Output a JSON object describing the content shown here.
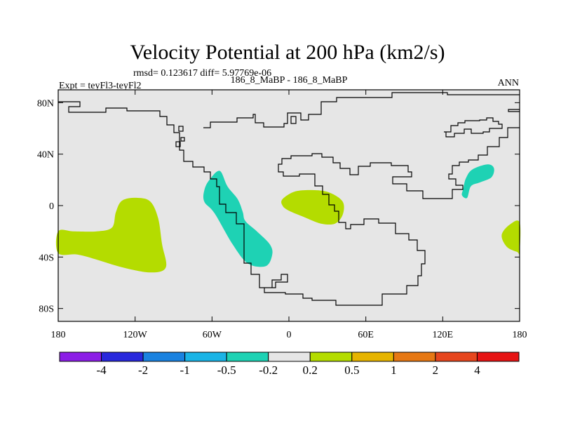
{
  "chart_data": {
    "type": "heatmap",
    "title": "Velocity Potential at 200 hPa (km2/s)",
    "stats": "rmsd= 0.123617 diff= 5.97769e-06",
    "left_label": "Expt = teyFl3-teyFl2",
    "center_label": "186_8_MaBP - 186_8_MaBP",
    "right_label": "ANN",
    "xlim": [
      -180,
      180
    ],
    "ylim": [
      -90,
      90
    ],
    "x_ticks": [
      {
        "value": -180,
        "label": "180"
      },
      {
        "value": -120,
        "label": "120W"
      },
      {
        "value": -60,
        "label": "60W"
      },
      {
        "value": 0,
        "label": "0"
      },
      {
        "value": 60,
        "label": "60E"
      },
      {
        "value": 120,
        "label": "120E"
      },
      {
        "value": 180,
        "label": "180"
      }
    ],
    "y_ticks": [
      {
        "value": 80,
        "label": "80N"
      },
      {
        "value": 40,
        "label": "40N"
      },
      {
        "value": 0,
        "label": "0"
      },
      {
        "value": -40,
        "label": "40S"
      },
      {
        "value": -80,
        "label": "80S"
      }
    ],
    "colorbar": {
      "colors": [
        "#8c1ee6",
        "#2828dc",
        "#1a82e0",
        "#1ab4e6",
        "#1ed2b4",
        "#e6e6e6",
        "#b4dc00",
        "#e6b400",
        "#e67814",
        "#e6461e",
        "#e61414"
      ],
      "labels": [
        "-4",
        "-2",
        "-1",
        "-0.5",
        "-0.2",
        "0.2",
        "0.5",
        "1",
        "2",
        "4"
      ]
    },
    "field_background": "#e6e6e6",
    "regions": [
      {
        "name": "positive-anomaly-south-pacific",
        "level": "0.2 to 0.5",
        "color": "#b4dc00",
        "polygon": [
          [
            -180,
            -20
          ],
          [
            -168,
            -20
          ],
          [
            -150,
            -20
          ],
          [
            -138,
            -17
          ],
          [
            -135,
            -5
          ],
          [
            -130,
            4
          ],
          [
            -118,
            6
          ],
          [
            -108,
            3
          ],
          [
            -102,
            -10
          ],
          [
            -99,
            -30
          ],
          [
            -96,
            -48
          ],
          [
            -108,
            -52
          ],
          [
            -130,
            -48
          ],
          [
            -150,
            -42
          ],
          [
            -165,
            -38
          ],
          [
            -180,
            -37
          ]
        ]
      },
      {
        "name": "positive-anomaly-atlantic",
        "level": "0.2 to 0.5",
        "color": "#b4dc00",
        "polygon": [
          [
            -5,
            5
          ],
          [
            5,
            11
          ],
          [
            20,
            12
          ],
          [
            32,
            10
          ],
          [
            42,
            3
          ],
          [
            42,
            -7
          ],
          [
            36,
            -14
          ],
          [
            25,
            -14
          ],
          [
            12,
            -9
          ],
          [
            0,
            -4
          ],
          [
            -5,
            0
          ]
        ]
      },
      {
        "name": "positive-anomaly-date-line",
        "level": "0.2 to 0.5",
        "color": "#b4dc00",
        "polygon": [
          [
            180,
            -13
          ],
          [
            172,
            -15
          ],
          [
            166,
            -23
          ],
          [
            170,
            -32
          ],
          [
            178,
            -36
          ],
          [
            180,
            -36
          ]
        ]
      },
      {
        "name": "negative-anomaly-americas",
        "level": "-0.5 to -0.2",
        "color": "#1ed2b4",
        "polygon": [
          [
            -54,
            27
          ],
          [
            -48,
            15
          ],
          [
            -40,
            5
          ],
          [
            -36,
            -5
          ],
          [
            -34,
            -12
          ],
          [
            -25,
            -20
          ],
          [
            -15,
            -30
          ],
          [
            -13,
            -38
          ],
          [
            -18,
            -47
          ],
          [
            -32,
            -45
          ],
          [
            -44,
            -30
          ],
          [
            -58,
            -6
          ],
          [
            -66,
            3
          ],
          [
            -66,
            12
          ],
          [
            -62,
            20
          ]
        ]
      },
      {
        "name": "negative-anomaly-east-asia",
        "level": "-0.5 to -0.2",
        "color": "#1ed2b4",
        "polygon": [
          [
            136,
            13
          ],
          [
            138,
            21
          ],
          [
            143,
            28
          ],
          [
            155,
            32
          ],
          [
            160,
            29
          ],
          [
            158,
            22
          ],
          [
            149,
            18
          ],
          [
            142,
            15
          ],
          [
            139,
            6
          ],
          [
            135,
            8
          ]
        ]
      }
    ]
  }
}
